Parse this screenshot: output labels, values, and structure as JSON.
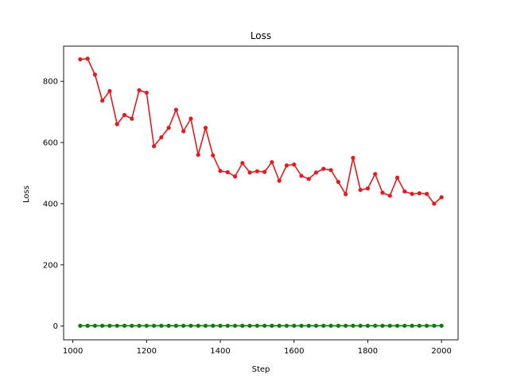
{
  "chart_data": {
    "type": "line",
    "title": "Loss",
    "xlabel": "Step",
    "ylabel": "Loss",
    "xlim": [
      975,
      2045
    ],
    "ylim": [
      -45,
      915
    ],
    "xticks": [
      1000,
      1200,
      1400,
      1600,
      1800,
      2000
    ],
    "yticks": [
      0,
      200,
      400,
      600,
      800
    ],
    "grid": false,
    "x": [
      1020,
      1040,
      1060,
      1080,
      1100,
      1120,
      1140,
      1160,
      1180,
      1200,
      1220,
      1240,
      1260,
      1280,
      1300,
      1320,
      1340,
      1360,
      1380,
      1400,
      1420,
      1440,
      1460,
      1480,
      1500,
      1520,
      1540,
      1560,
      1580,
      1600,
      1620,
      1640,
      1660,
      1680,
      1700,
      1720,
      1740,
      1760,
      1780,
      1800,
      1820,
      1840,
      1860,
      1880,
      1900,
      1920,
      1940,
      1960,
      1980,
      2000
    ],
    "series": [
      {
        "color": "#e41a1c",
        "values": [
          872,
          874,
          822,
          737,
          768,
          660,
          690,
          678,
          771,
          763,
          588,
          617,
          648,
          707,
          637,
          678,
          560,
          648,
          558,
          507,
          503,
          489,
          533,
          502,
          506,
          504,
          536,
          475,
          525,
          528,
          491,
          481,
          502,
          514,
          510,
          471,
          431,
          550,
          445,
          450,
          497,
          436,
          426,
          485,
          440,
          432,
          434,
          432,
          400,
          421
        ]
      },
      {
        "color": "#008000",
        "values": [
          1,
          1,
          1,
          1,
          1,
          1,
          1,
          1,
          1,
          1,
          1,
          1,
          1,
          1,
          1,
          1,
          1,
          1,
          1,
          1,
          1,
          1,
          1,
          1,
          1,
          1,
          1,
          1,
          1,
          1,
          1,
          1,
          1,
          1,
          1,
          1,
          1,
          1,
          1,
          1,
          1,
          1,
          1,
          1,
          1,
          1,
          1,
          1,
          1,
          1
        ]
      }
    ]
  }
}
